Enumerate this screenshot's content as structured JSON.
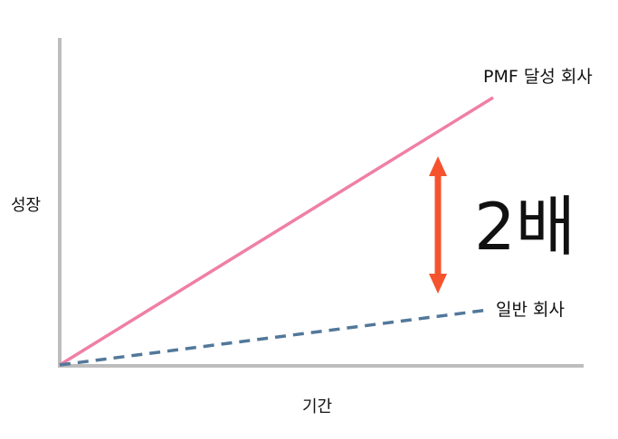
{
  "labels": {
    "y_axis": "성장",
    "x_axis": "기간",
    "top_line": "PMF 달성 회사",
    "bottom_line": "일반 회사",
    "ratio": "2배"
  },
  "colors": {
    "top_line": "#ef7fa6",
    "bottom_line": "#52789a",
    "arrow": "#f4532e",
    "axes": "#bdbdbd"
  }
}
